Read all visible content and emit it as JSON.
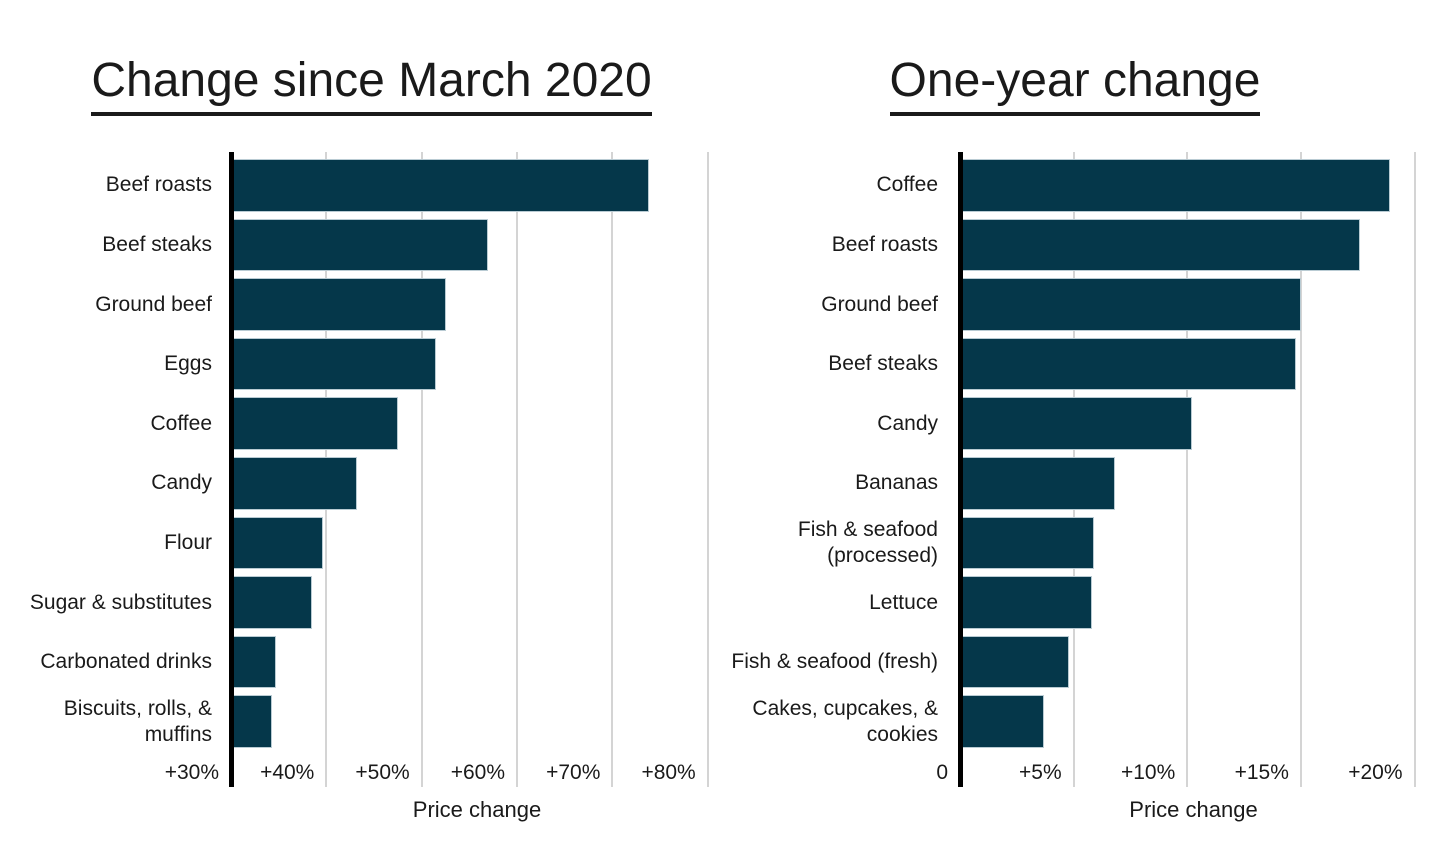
{
  "styles": {
    "background": "#ffffff",
    "text_color": "#1a1a1a",
    "bar_color": "#05374a",
    "bar_edge_color": "#b9cbd3",
    "gridline_color": "#d4d4d4",
    "axis_color": "#000000"
  },
  "chart_data": [
    {
      "type": "bar",
      "orientation": "horizontal",
      "title": "Change since March 2020",
      "xlabel": "Price change",
      "categories": [
        "Beef roasts",
        "Beef steaks",
        "Ground beef",
        "Eggs",
        "Coffee",
        "Candy",
        "Flour",
        "Sugar & substitutes",
        "Carbonated drinks",
        "Biscuits, rolls, & muffins"
      ],
      "values": [
        73.8,
        57.0,
        52.6,
        51.5,
        47.5,
        43.2,
        39.6,
        38.5,
        34.7,
        34.3
      ],
      "xlim": [
        30,
        81.6
      ],
      "tick_values": [
        30,
        40,
        50,
        60,
        70,
        80
      ],
      "tick_labels": [
        "+30%",
        "+40%",
        "+50%",
        "+60%",
        "+70%",
        "+80%"
      ],
      "grid": true,
      "legend": "none"
    },
    {
      "type": "bar",
      "orientation": "horizontal",
      "title": "One-year change",
      "xlabel": "Price change",
      "categories": [
        "Coffee",
        "Beef roasts",
        "Ground beef",
        "Beef steaks",
        "Candy",
        "Bananas",
        "Fish & seafood (processed)",
        "Lettuce",
        "Fish & seafood (fresh)",
        "Cakes, cupcakes, & cookies"
      ],
      "values": [
        18.9,
        17.6,
        15.0,
        14.8,
        10.2,
        6.8,
        5.9,
        5.8,
        4.8,
        3.7
      ],
      "xlim": [
        0,
        20.55
      ],
      "tick_values": [
        0,
        5,
        10,
        15,
        20
      ],
      "tick_labels": [
        "0",
        "+5%",
        "+10%",
        "+15%",
        "+20%"
      ],
      "grid": true,
      "legend": "none"
    }
  ]
}
